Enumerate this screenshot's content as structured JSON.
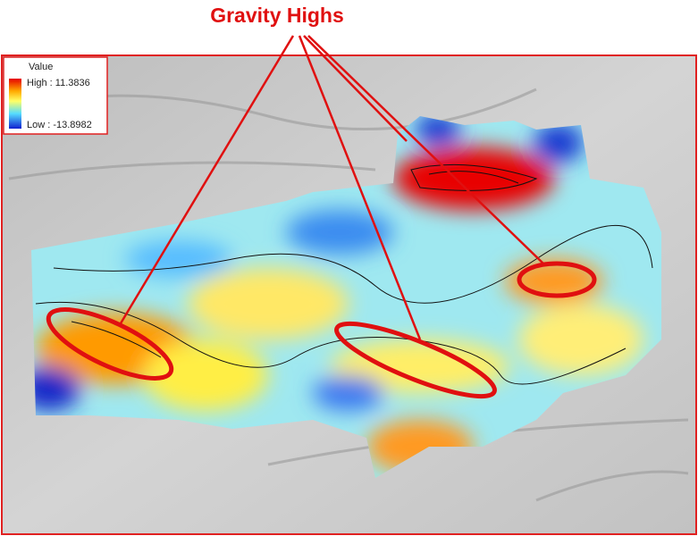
{
  "title": "Gravity Highs",
  "legend": {
    "title": "Value",
    "high": "High : 11.3836",
    "low": "Low : -13.8982"
  }
}
